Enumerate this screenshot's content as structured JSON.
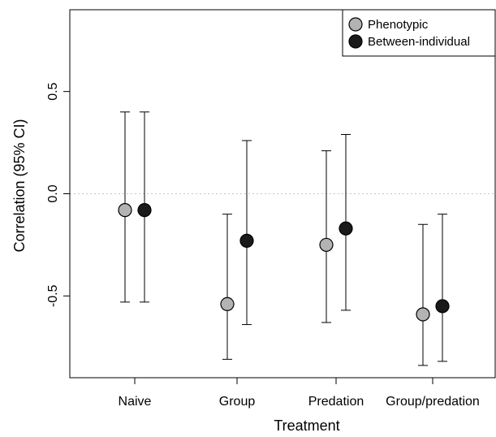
{
  "chart_data": {
    "type": "scatter",
    "title": "",
    "xlabel": "Treatment",
    "ylabel": "Correlation (95% CI)",
    "categories": [
      "Naive",
      "Group",
      "Predation",
      "Group/predation"
    ],
    "ylim": [
      -0.9,
      0.9
    ],
    "yticks": [
      -0.5,
      0.0,
      0.5
    ],
    "ytick_labels": [
      "-0.5",
      "0.0",
      "0.5"
    ],
    "reference_line": 0.0,
    "grid": false,
    "legend_position": "top-right",
    "series": [
      {
        "name": "Phenotypic",
        "color": "#b3b3b3",
        "values": [
          -0.08,
          -0.54,
          -0.25,
          -0.59
        ],
        "ci_lower": [
          -0.53,
          -0.81,
          -0.63,
          -0.84
        ],
        "ci_upper": [
          0.4,
          -0.1,
          0.21,
          -0.15
        ]
      },
      {
        "name": "Between-individual",
        "color": "#1a1a1a",
        "values": [
          -0.08,
          -0.23,
          -0.17,
          -0.55
        ],
        "ci_lower": [
          -0.53,
          -0.64,
          -0.57,
          -0.82
        ],
        "ci_upper": [
          0.4,
          0.26,
          0.29,
          -0.1
        ]
      }
    ]
  }
}
